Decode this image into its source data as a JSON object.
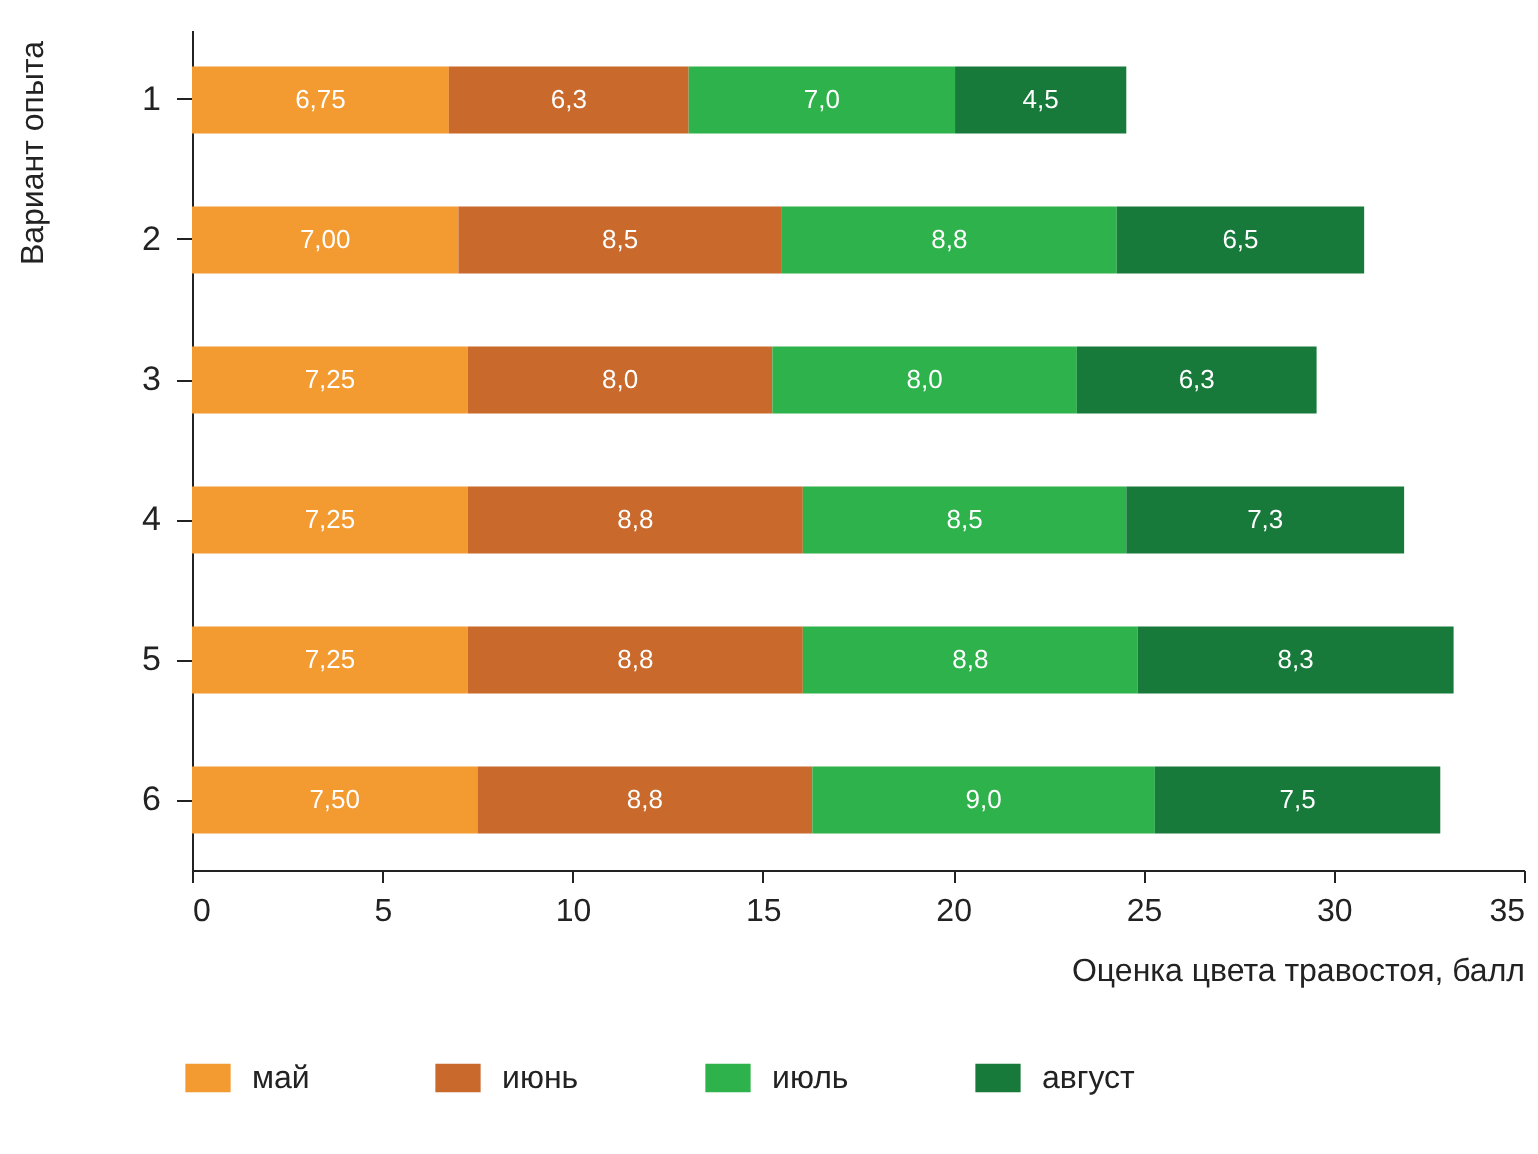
{
  "chart_data": {
    "type": "bar",
    "orientation": "horizontal",
    "stacked": true,
    "xlabel": "Оценка цвета травостоя, балл",
    "ylabel": "Вариант опыта",
    "categories": [
      "1",
      "2",
      "3",
      "4",
      "5",
      "6"
    ],
    "xlim": [
      0,
      35
    ],
    "xticks": [
      0,
      5,
      10,
      15,
      20,
      25,
      30,
      35
    ],
    "legend": "bottom",
    "series": [
      {
        "name": "май",
        "color": "#f39a30",
        "values": [
          6.75,
          7.0,
          7.25,
          7.25,
          7.25,
          7.5
        ],
        "value_labels": [
          "6,75",
          "7,00",
          "7,25",
          "7,25",
          "7,25",
          "7,50"
        ]
      },
      {
        "name": "июнь",
        "color": "#c9692c",
        "values": [
          6.3,
          8.5,
          8.0,
          8.8,
          8.8,
          8.8
        ],
        "value_labels": [
          "6,3",
          "8,5",
          "8,0",
          "8,8",
          "8,8",
          "8,8"
        ]
      },
      {
        "name": "июль",
        "color": "#2eb24b",
        "values": [
          7.0,
          8.8,
          8.0,
          8.5,
          8.8,
          9.0
        ],
        "value_labels": [
          "7,0",
          "8,8",
          "8,0",
          "8,5",
          "8,8",
          "9,0"
        ]
      },
      {
        "name": "август",
        "color": "#177a3b",
        "values": [
          4.5,
          6.5,
          6.3,
          7.3,
          8.3,
          7.5
        ],
        "value_labels": [
          "4,5",
          "6,5",
          "6,3",
          "7,3",
          "8,3",
          "7,5"
        ]
      }
    ]
  }
}
